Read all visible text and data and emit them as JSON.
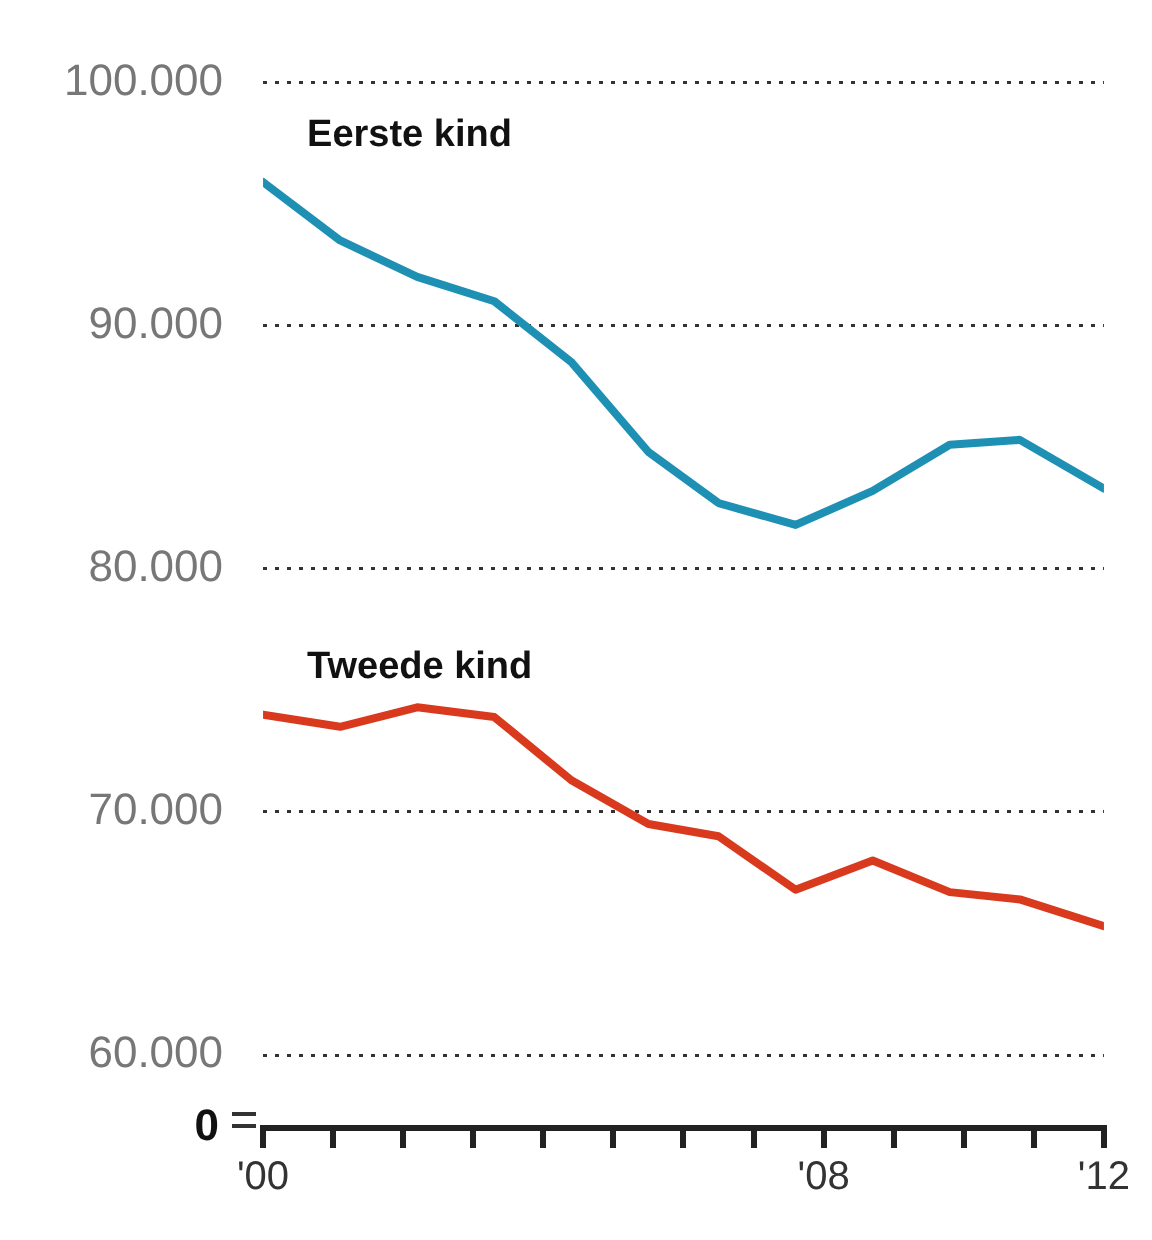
{
  "chart_data": {
    "type": "line",
    "legend": false,
    "grid": "y",
    "marker": "none",
    "line_style": "solid",
    "xlim": [
      2000,
      2012
    ],
    "xticks": [
      {
        "value": 2000,
        "label": "'00"
      },
      {
        "value": 2001,
        "label": null
      },
      {
        "value": 2002,
        "label": null
      },
      {
        "value": 2003,
        "label": null
      },
      {
        "value": 2004,
        "label": null
      },
      {
        "value": 2005,
        "label": null
      },
      {
        "value": 2006,
        "label": null
      },
      {
        "value": 2007,
        "label": null
      },
      {
        "value": 2008,
        "label": "'08"
      },
      {
        "value": 2009,
        "label": null
      },
      {
        "value": 2010,
        "label": null
      },
      {
        "value": 2011,
        "label": null
      },
      {
        "value": 2012,
        "label": "'12"
      }
    ],
    "ylim": [
      57000,
      100000
    ],
    "yticks": [
      {
        "value": 60000,
        "label": "60.000"
      },
      {
        "value": 70000,
        "label": "70.000"
      },
      {
        "value": 80000,
        "label": "80.000"
      },
      {
        "value": 90000,
        "label": "90.000"
      },
      {
        "value": 100000,
        "label": "100.000"
      }
    ],
    "annotations": [
      "0"
    ],
    "series": [
      {
        "name": "Eerste kind",
        "color": "#1e90b4",
        "x": [
          2000,
          2001.1,
          2002.2,
          2003.3,
          2004.4,
          2005.5,
          2006.5,
          2007.6,
          2008.7,
          2009.8,
          2010.8,
          2012
        ],
        "values": [
          95900,
          93500,
          92000,
          91000,
          88500,
          84800,
          82700,
          81800,
          83200,
          85100,
          85300,
          83300
        ]
      },
      {
        "name": "Tweede kind",
        "color": "#d93a1e",
        "x": [
          2000,
          2001.1,
          2002.2,
          2003.3,
          2004.4,
          2005.5,
          2006.5,
          2007.6,
          2008.7,
          2009.8,
          2010.8,
          2012
        ],
        "values": [
          74000,
          73500,
          74300,
          73900,
          71300,
          69500,
          69000,
          66800,
          68000,
          66700,
          66400,
          65300
        ]
      }
    ]
  }
}
